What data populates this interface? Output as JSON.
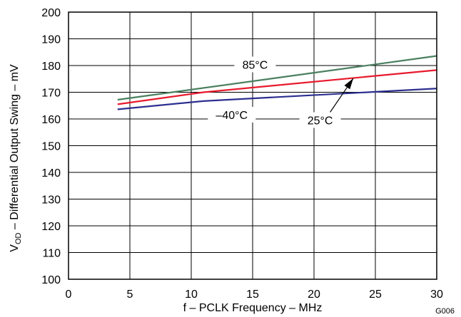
{
  "chart_data": {
    "type": "line",
    "xlabel": "f – PCLK Frequency – MHz",
    "ylabel": {
      "prefix": "V",
      "sub": "OD",
      "rest": " – Differential Output Swing – mV"
    },
    "figure_id": "G006",
    "xlim": [
      0,
      30
    ],
    "ylim": [
      100,
      200
    ],
    "x_ticks": [
      0,
      5,
      10,
      15,
      20,
      25,
      30
    ],
    "y_ticks": [
      100,
      110,
      120,
      130,
      140,
      150,
      160,
      170,
      180,
      190,
      200
    ],
    "grid": true,
    "series": [
      {
        "name": "85°C",
        "color": "#4a7f5f",
        "x": [
          4,
          30
        ],
        "y": [
          167.2,
          183.6
        ]
      },
      {
        "name": "25°C",
        "color": "#e8192c",
        "x": [
          4,
          11,
          30
        ],
        "y": [
          165.5,
          170.0,
          178.3
        ]
      },
      {
        "name": "–40°C",
        "color": "#2b2f8f",
        "x": [
          4,
          11,
          30
        ],
        "y": [
          163.6,
          166.7,
          171.4
        ]
      }
    ],
    "annotations": [
      {
        "text": "85°C",
        "x": 15.2,
        "y": 180.4
      },
      {
        "text": "–40°C",
        "x": 13.3,
        "y": 161.6
      },
      {
        "text": "25°C",
        "x": 20.5,
        "y": 159.6,
        "arrow_to": [
          23.2,
          175.2
        ]
      }
    ]
  }
}
